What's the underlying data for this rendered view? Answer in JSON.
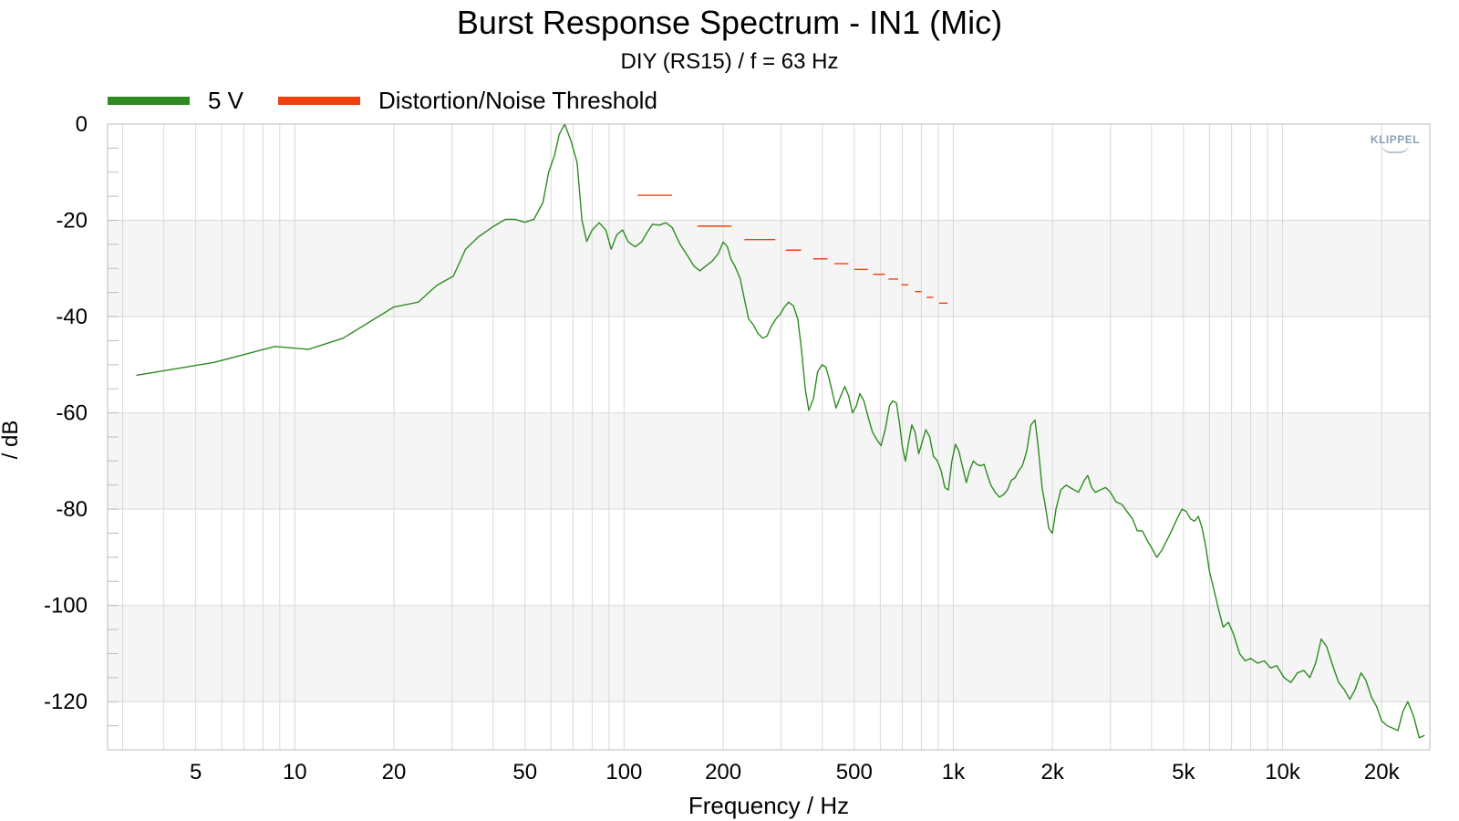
{
  "chart_data": {
    "type": "line",
    "title": "Burst Response Spectrum - IN1 (Mic)",
    "subtitle": "DIY (RS15) / f = 63 Hz",
    "xlabel": "Frequency / Hz",
    "ylabel": "/ dB",
    "x_scale": "log",
    "xlim": [
      2.7,
      28000
    ],
    "ylim": [
      -130,
      0
    ],
    "x_ticks": [
      {
        "value": 5,
        "label": "5"
      },
      {
        "value": 10,
        "label": "10"
      },
      {
        "value": 20,
        "label": "20"
      },
      {
        "value": 50,
        "label": "50"
      },
      {
        "value": 100,
        "label": "100"
      },
      {
        "value": 200,
        "label": "200"
      },
      {
        "value": 500,
        "label": "500"
      },
      {
        "value": 1000,
        "label": "1k"
      },
      {
        "value": 2000,
        "label": "2k"
      },
      {
        "value": 5000,
        "label": "5k"
      },
      {
        "value": 10000,
        "label": "10k"
      },
      {
        "value": 20000,
        "label": "20k"
      }
    ],
    "y_ticks": [
      {
        "value": 0,
        "label": "0"
      },
      {
        "value": -20,
        "label": "-20"
      },
      {
        "value": -40,
        "label": "-40"
      },
      {
        "value": -60,
        "label": "-60"
      },
      {
        "value": -80,
        "label": "-80"
      },
      {
        "value": -100,
        "label": "-100"
      },
      {
        "value": -120,
        "label": "-120"
      }
    ],
    "grid": true,
    "legend_position": "top-left",
    "series": [
      {
        "name": "5 V",
        "color": "#2e8b22",
        "points": [
          [
            3.3,
            -52.2
          ],
          [
            5.7,
            -49.5
          ],
          [
            8.7,
            -46.2
          ],
          [
            11,
            -46.8
          ],
          [
            14,
            -44.5
          ],
          [
            20,
            -38
          ],
          [
            23.7,
            -37
          ],
          [
            27,
            -33.5
          ],
          [
            30.3,
            -31.6
          ],
          [
            33,
            -26
          ],
          [
            36,
            -23.5
          ],
          [
            40,
            -21.3
          ],
          [
            43.6,
            -19.8
          ],
          [
            46.7,
            -19.8
          ],
          [
            49.9,
            -20.4
          ],
          [
            53.2,
            -19.8
          ],
          [
            56.7,
            -16.3
          ],
          [
            59,
            -10
          ],
          [
            61.5,
            -6.5
          ],
          [
            63.5,
            -2.2
          ],
          [
            66,
            0
          ],
          [
            69,
            -3.5
          ],
          [
            72,
            -8
          ],
          [
            74.5,
            -20
          ],
          [
            77,
            -24.4
          ],
          [
            80,
            -22
          ],
          [
            84,
            -20.5
          ],
          [
            88,
            -22
          ],
          [
            91.4,
            -26
          ],
          [
            95,
            -23
          ],
          [
            99,
            -22
          ],
          [
            103,
            -24.5
          ],
          [
            108,
            -25.5
          ],
          [
            113,
            -24.5
          ],
          [
            117,
            -22.7
          ],
          [
            122,
            -20.8
          ],
          [
            128,
            -21
          ],
          [
            134,
            -20.5
          ],
          [
            140,
            -21.5
          ],
          [
            148,
            -25
          ],
          [
            158,
            -28
          ],
          [
            163,
            -29.5
          ],
          [
            170,
            -30.5
          ],
          [
            177,
            -29.5
          ],
          [
            185,
            -28.5
          ],
          [
            193,
            -27
          ],
          [
            200,
            -24.5
          ],
          [
            206,
            -25.5
          ],
          [
            211,
            -28
          ],
          [
            217,
            -29.5
          ],
          [
            225,
            -32
          ],
          [
            233,
            -37
          ],
          [
            239,
            -40.5
          ],
          [
            247,
            -41.7
          ],
          [
            255,
            -43.5
          ],
          [
            264,
            -44.5
          ],
          [
            272,
            -44
          ],
          [
            280,
            -42
          ],
          [
            289,
            -40.5
          ],
          [
            298,
            -39.5
          ],
          [
            307,
            -38
          ],
          [
            316,
            -37
          ],
          [
            327,
            -37.8
          ],
          [
            337,
            -40.5
          ],
          [
            346,
            -47
          ],
          [
            355,
            -55
          ],
          [
            364,
            -59.5
          ],
          [
            376,
            -57
          ],
          [
            387,
            -51.5
          ],
          [
            399,
            -50
          ],
          [
            410,
            -50.5
          ],
          [
            420,
            -53
          ],
          [
            430,
            -56
          ],
          [
            440,
            -59
          ],
          [
            455,
            -56.5
          ],
          [
            468,
            -54.5
          ],
          [
            481,
            -56.5
          ],
          [
            494,
            -60
          ],
          [
            508,
            -58.5
          ],
          [
            520,
            -56
          ],
          [
            535,
            -57.5
          ],
          [
            552,
            -61
          ],
          [
            568,
            -64
          ],
          [
            585,
            -65.5
          ],
          [
            603,
            -66.8
          ],
          [
            621,
            -63.5
          ],
          [
            640,
            -58.5
          ],
          [
            655,
            -57.5
          ],
          [
            672,
            -58
          ],
          [
            686,
            -62
          ],
          [
            700,
            -67
          ],
          [
            715,
            -70
          ],
          [
            732,
            -66
          ],
          [
            748,
            -62.5
          ],
          [
            765,
            -64
          ],
          [
            785,
            -68.5
          ],
          [
            805,
            -66
          ],
          [
            825,
            -63.5
          ],
          [
            848,
            -65
          ],
          [
            870,
            -69
          ],
          [
            895,
            -70
          ],
          [
            918,
            -72
          ],
          [
            942,
            -75.5
          ],
          [
            966,
            -76
          ],
          [
            990,
            -70
          ],
          [
            1015,
            -66.5
          ],
          [
            1040,
            -68
          ],
          [
            1065,
            -71
          ],
          [
            1095,
            -74.5
          ],
          [
            1120,
            -72
          ],
          [
            1150,
            -70
          ],
          [
            1180,
            -70.7
          ],
          [
            1210,
            -71
          ],
          [
            1240,
            -70.7
          ],
          [
            1270,
            -73
          ],
          [
            1300,
            -75
          ],
          [
            1340,
            -76.5
          ],
          [
            1380,
            -77.5
          ],
          [
            1420,
            -77
          ],
          [
            1460,
            -76
          ],
          [
            1500,
            -74
          ],
          [
            1540,
            -73.5
          ],
          [
            1580,
            -72
          ],
          [
            1620,
            -71
          ],
          [
            1670,
            -68
          ],
          [
            1720,
            -62.5
          ],
          [
            1770,
            -61.5
          ],
          [
            1810,
            -67
          ],
          [
            1860,
            -75.5
          ],
          [
            1910,
            -80
          ],
          [
            1950,
            -84
          ],
          [
            2000,
            -85
          ],
          [
            2050,
            -80
          ],
          [
            2120,
            -76
          ],
          [
            2200,
            -75
          ],
          [
            2300,
            -75.8
          ],
          [
            2400,
            -76.5
          ],
          [
            2500,
            -74
          ],
          [
            2560,
            -73
          ],
          [
            2630,
            -75.5
          ],
          [
            2700,
            -76.5
          ],
          [
            2800,
            -76
          ],
          [
            2900,
            -75.5
          ],
          [
            3000,
            -76.5
          ],
          [
            3120,
            -78.5
          ],
          [
            3250,
            -79
          ],
          [
            3370,
            -80.5
          ],
          [
            3500,
            -82
          ],
          [
            3620,
            -84.5
          ],
          [
            3750,
            -84.5
          ],
          [
            3880,
            -86.5
          ],
          [
            4000,
            -88
          ],
          [
            4150,
            -90
          ],
          [
            4300,
            -88.5
          ],
          [
            4450,
            -86.5
          ],
          [
            4600,
            -84.5
          ],
          [
            4780,
            -82
          ],
          [
            4950,
            -80
          ],
          [
            5100,
            -80.5
          ],
          [
            5250,
            -82
          ],
          [
            5400,
            -82.5
          ],
          [
            5550,
            -81.5
          ],
          [
            5700,
            -84
          ],
          [
            5850,
            -88
          ],
          [
            6000,
            -93
          ],
          [
            6200,
            -97
          ],
          [
            6400,
            -101
          ],
          [
            6600,
            -104.5
          ],
          [
            6850,
            -103.5
          ],
          [
            7100,
            -106
          ],
          [
            7400,
            -110
          ],
          [
            7700,
            -111.5
          ],
          [
            8000,
            -111
          ],
          [
            8400,
            -112
          ],
          [
            8800,
            -111.5
          ],
          [
            9200,
            -113
          ],
          [
            9600,
            -112.5
          ],
          [
            10100,
            -115
          ],
          [
            10600,
            -116
          ],
          [
            11100,
            -114
          ],
          [
            11600,
            -113.5
          ],
          [
            12100,
            -115
          ],
          [
            12600,
            -112
          ],
          [
            13100,
            -107
          ],
          [
            13600,
            -108.5
          ],
          [
            14200,
            -112.5
          ],
          [
            14800,
            -116
          ],
          [
            15400,
            -117.5
          ],
          [
            16000,
            -119.5
          ],
          [
            16600,
            -117.5
          ],
          [
            17300,
            -114
          ],
          [
            17900,
            -115.5
          ],
          [
            18600,
            -119
          ],
          [
            19300,
            -121
          ],
          [
            20000,
            -124
          ],
          [
            20800,
            -125
          ],
          [
            21600,
            -125.5
          ],
          [
            22400,
            -126
          ],
          [
            23200,
            -122
          ],
          [
            24000,
            -120
          ],
          [
            25000,
            -123
          ],
          [
            26000,
            -127.5
          ],
          [
            27000,
            -127
          ]
        ]
      },
      {
        "name": "Distortion/Noise Threshold",
        "color": "#f04010",
        "segments": [
          [
            110,
            140,
            -14.8
          ],
          [
            167,
            212,
            -21.2
          ],
          [
            232,
            288,
            -24
          ],
          [
            310,
            345,
            -26.2
          ],
          [
            375,
            415,
            -28
          ],
          [
            435,
            480,
            -29
          ],
          [
            500,
            550,
            -30.2
          ],
          [
            570,
            620,
            -31.2
          ],
          [
            635,
            680,
            -32.2
          ],
          [
            695,
            730,
            -33.4
          ],
          [
            765,
            800,
            -34.8
          ],
          [
            830,
            870,
            -36
          ],
          [
            905,
            960,
            -37.2
          ]
        ]
      }
    ],
    "logo_text": "KLIPPEL"
  }
}
